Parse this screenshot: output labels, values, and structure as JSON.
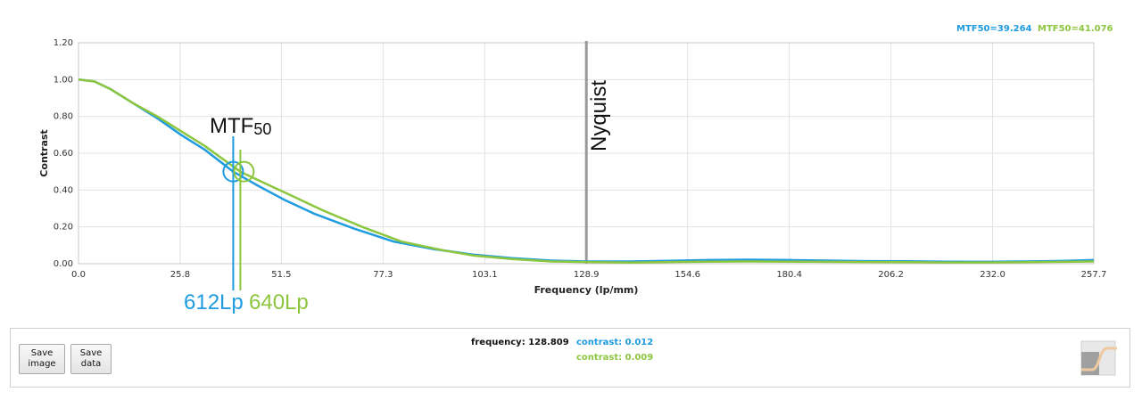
{
  "legend": [
    {
      "label": "MTF50=39.264",
      "color": "#1f9be0"
    },
    {
      "label": "MTF50=41.076",
      "color": "#8cc63f"
    }
  ],
  "annotations": {
    "mtf_main": "MTF",
    "mtf_sub": "50",
    "nyquist": "Nyquist",
    "lp_blue": "612Lp",
    "lp_green": "640Lp"
  },
  "controls": {
    "save_image": "Save\nimage",
    "save_data": "Save\ndata"
  },
  "readout": {
    "frequency_label": "frequency: 128.809",
    "contrast_blue": "contrast: 0.012",
    "contrast_green": "contrast: 0.009"
  },
  "chart_data": {
    "type": "line",
    "xlabel": "Frequency (lp/mm)",
    "ylabel": "Contrast",
    "xlim": [
      0,
      257.7
    ],
    "ylim": [
      0,
      1.2
    ],
    "x_ticks": [
      "0.0",
      "25.8",
      "51.5",
      "77.3",
      "103.1",
      "128.9",
      "154.6",
      "180.4",
      "206.2",
      "232.0",
      "257.7"
    ],
    "y_ticks": [
      "0.00",
      "0.20",
      "0.40",
      "0.60",
      "0.80",
      "1.00",
      "1.20"
    ],
    "grid": true,
    "legend_position": "top-right",
    "nyquist_x": 128.9,
    "mtf50_markers": [
      {
        "x": 39.264,
        "y": 0.5,
        "color": "#1f9be0"
      },
      {
        "x": 41.076,
        "y": 0.5,
        "color": "#8cc63f"
      }
    ],
    "series": [
      {
        "color": "#1f9be0",
        "x": [
          0,
          4,
          8,
          14,
          20,
          26,
          32,
          39.264,
          45,
          52,
          60,
          70,
          80,
          90,
          100,
          110,
          120,
          128.9,
          140,
          150,
          160,
          170,
          180,
          190,
          200,
          210,
          220,
          230,
          240,
          250,
          257.7
        ],
        "y": [
          1.0,
          0.99,
          0.95,
          0.87,
          0.79,
          0.7,
          0.62,
          0.5,
          0.43,
          0.35,
          0.27,
          0.19,
          0.12,
          0.08,
          0.05,
          0.03,
          0.017,
          0.012,
          0.012,
          0.016,
          0.02,
          0.022,
          0.02,
          0.017,
          0.014,
          0.013,
          0.011,
          0.01,
          0.012,
          0.015,
          0.02
        ]
      },
      {
        "color": "#8cc63f",
        "x": [
          0,
          4,
          8,
          14,
          20,
          26,
          32,
          41.076,
          47,
          54,
          62,
          72,
          82,
          92,
          100,
          110,
          120,
          128.9,
          140,
          150,
          160,
          170,
          180,
          190,
          200,
          210,
          220,
          230,
          240,
          250,
          257.7
        ],
        "y": [
          1.0,
          0.99,
          0.95,
          0.87,
          0.8,
          0.72,
          0.64,
          0.5,
          0.44,
          0.37,
          0.29,
          0.2,
          0.12,
          0.075,
          0.045,
          0.025,
          0.012,
          0.009,
          0.006,
          0.009,
          0.011,
          0.012,
          0.011,
          0.01,
          0.009,
          0.008,
          0.007,
          0.007,
          0.008,
          0.01,
          0.012
        ]
      }
    ]
  }
}
